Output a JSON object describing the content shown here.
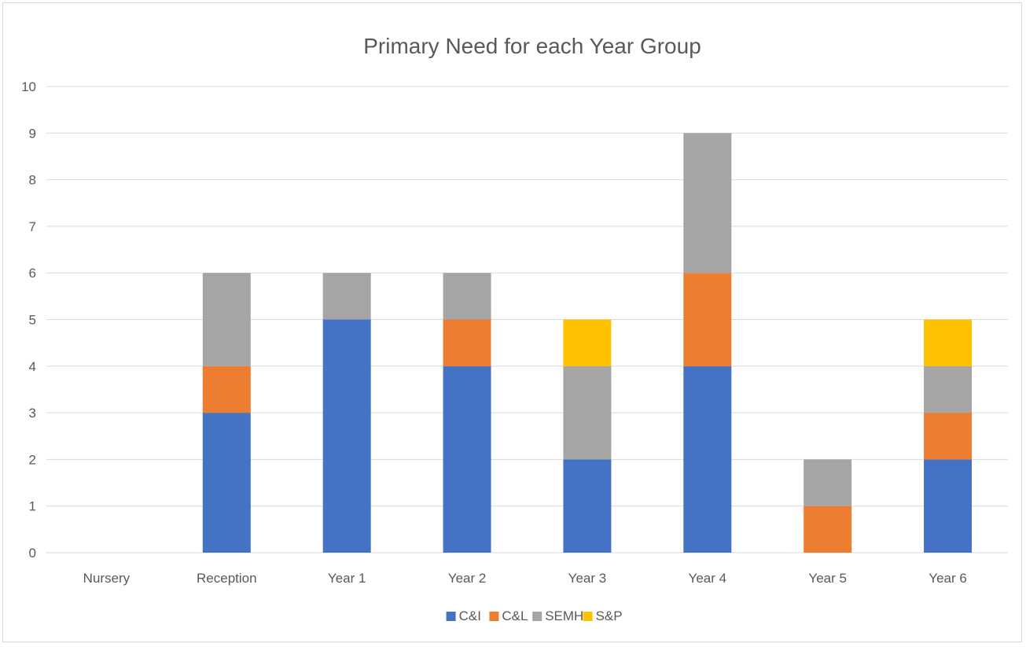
{
  "chart_data": {
    "type": "bar",
    "stacked": true,
    "title": "Primary Need for each Year Group",
    "xlabel": "",
    "ylabel": "",
    "ylim": [
      0,
      10
    ],
    "yticks": [
      "0",
      "1",
      "2",
      "3",
      "4",
      "5",
      "6",
      "7",
      "8",
      "9",
      "10"
    ],
    "grid": true,
    "legend_position": "bottom",
    "categories": [
      "Nursery",
      "Reception",
      "Year 1",
      "Year 2",
      "Year 3",
      "Year 4",
      "Year 5",
      "Year 6"
    ],
    "series": [
      {
        "name": "C&I",
        "color": "#4472C4",
        "values": [
          0,
          3,
          5,
          4,
          2,
          4,
          0,
          2
        ]
      },
      {
        "name": "C&L",
        "color": "#ED7D31",
        "values": [
          0,
          1,
          0,
          1,
          0,
          2,
          1,
          1
        ]
      },
      {
        "name": "SEMH",
        "color": "#A5A5A5",
        "values": [
          0,
          2,
          1,
          1,
          2,
          3,
          1,
          1
        ]
      },
      {
        "name": "S&P",
        "color": "#FFC000",
        "values": [
          0,
          0,
          0,
          0,
          1,
          0,
          0,
          1
        ]
      }
    ]
  }
}
